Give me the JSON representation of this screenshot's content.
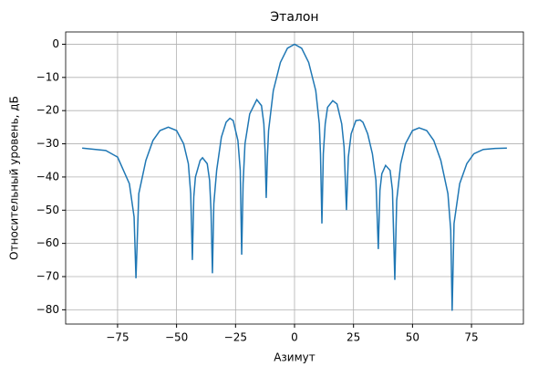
{
  "chart_data": {
    "type": "line",
    "title": "Эталон",
    "x_label": "Азимут",
    "y_label": "Относительный уровень, дБ",
    "grid": true,
    "xlim": [
      -97,
      97
    ],
    "ylim": [
      -84.3,
      3.7
    ],
    "xticks": [
      {
        "value": -75,
        "label": "−75"
      },
      {
        "value": -50,
        "label": "−50"
      },
      {
        "value": -25,
        "label": "−25"
      },
      0,
      25,
      50,
      75
    ],
    "yticks": [
      0,
      {
        "value": -10,
        "label": "−10"
      },
      {
        "value": -20,
        "label": "−20"
      },
      {
        "value": -30,
        "label": "−30"
      },
      {
        "value": -40,
        "label": "−40"
      },
      {
        "value": -50,
        "label": "−50"
      },
      {
        "value": -60,
        "label": "−60"
      },
      {
        "value": -70,
        "label": "−70"
      },
      {
        "value": -80,
        "label": "−80"
      }
    ],
    "x": [
      -90,
      -80,
      -75,
      -70,
      -68,
      -67.2,
      -66,
      -63,
      -60,
      -57,
      -53.5,
      -50,
      -47,
      -45,
      -44,
      -43.3,
      -42.7,
      -42,
      -40,
      -39,
      -37,
      -36,
      -35.4,
      -34.8,
      -34.2,
      -33,
      -31,
      -29,
      -27.4,
      -26,
      -24,
      -23,
      -22.4,
      -21.8,
      -21,
      -19,
      -16,
      -14,
      -13,
      -12.5,
      -12,
      -11.5,
      -11,
      -9,
      -6,
      -3,
      0,
      3,
      6,
      9,
      10.5,
      11,
      11.6,
      12.2,
      13,
      14,
      16.2,
      18,
      20,
      21,
      22,
      22.8,
      24,
      26,
      27.8,
      29,
      31,
      33,
      34.5,
      35.5,
      36.2,
      37,
      38.6,
      40.5,
      41.5,
      42.5,
      43.3,
      45,
      47,
      50,
      52.8,
      56,
      59,
      62,
      65,
      66.2,
      66.8,
      67.6,
      70,
      73,
      76,
      80,
      85,
      90
    ],
    "series": [
      {
        "color": "#1f77b4",
        "values": [
          -31.3,
          -32,
          -34,
          -42,
          -52,
          -70.5,
          -45,
          -35,
          -29,
          -26,
          -25,
          -26,
          -30,
          -36,
          -45,
          -65,
          -46,
          -40,
          -35,
          -34.2,
          -36,
          -41,
          -50,
          -69,
          -48,
          -38,
          -28,
          -23.5,
          -22.3,
          -23,
          -29,
          -38,
          -63.4,
          -42,
          -30,
          -21,
          -16.7,
          -18.5,
          -24,
          -32,
          -46.3,
          -34,
          -26,
          -14,
          -5.5,
          -1.2,
          0,
          -1.2,
          -5.5,
          -14,
          -24,
          -33,
          -54,
          -33,
          -24,
          -19,
          -17,
          -18,
          -24,
          -31,
          -50,
          -34,
          -27,
          -23,
          -22.8,
          -23.5,
          -27,
          -33,
          -41,
          -61.7,
          -44,
          -39,
          -36.5,
          -38,
          -44,
          -71,
          -47,
          -36,
          -30,
          -26,
          -25.2,
          -26,
          -29,
          -35,
          -45,
          -56,
          -80.3,
          -54,
          -42,
          -36,
          -33,
          -31.7,
          -31.4,
          -31.3
        ]
      }
    ]
  }
}
